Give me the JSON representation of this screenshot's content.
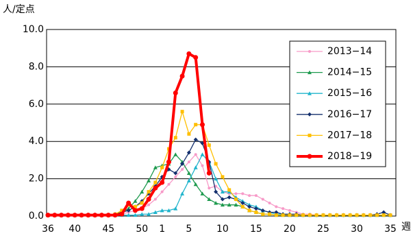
{
  "chart_data": {
    "type": "line",
    "y_label": "人/定点",
    "x_label": "週",
    "categories": [
      "36",
      null,
      null,
      null,
      "40",
      null,
      null,
      null,
      null,
      "45",
      null,
      null,
      null,
      null,
      "50",
      null,
      null,
      "1",
      null,
      null,
      null,
      "5",
      null,
      null,
      null,
      null,
      "10",
      null,
      null,
      null,
      null,
      "15",
      null,
      null,
      null,
      null,
      "20",
      null,
      null,
      null,
      null,
      "25",
      null,
      null,
      null,
      null,
      "30",
      null,
      null,
      null,
      null,
      "35"
    ],
    "ylim": [
      0,
      10
    ],
    "yticks": [
      {
        "value": 0,
        "label": "0.0"
      },
      {
        "value": 2,
        "label": "2.0"
      },
      {
        "value": 4,
        "label": "4.0"
      },
      {
        "value": 6,
        "label": "6.0"
      },
      {
        "value": 8,
        "label": "8.0"
      },
      {
        "value": 10,
        "label": "10.0"
      }
    ],
    "grid": true,
    "legend": "upper right",
    "series": [
      {
        "name": "2013−14",
        "color": "#f79ac8",
        "marker": "circle",
        "values": [
          0.1,
          0.1,
          0.05,
          0.05,
          0.05,
          0.05,
          0.05,
          0.05,
          0.05,
          0.05,
          0.1,
          0.1,
          0.2,
          0.3,
          0.4,
          0.6,
          0.9,
          1.3,
          1.7,
          2.1,
          2.5,
          2.9,
          3.3,
          2.7,
          1.5,
          1.6,
          1.3,
          1.2,
          1.2,
          1.2,
          1.1,
          1.1,
          0.9,
          0.7,
          0.5,
          0.4,
          0.3,
          0.2,
          0.1,
          0.1,
          0.05,
          0.05,
          0.05,
          0.05,
          0.05,
          0.05,
          0.05,
          0.05,
          0.05,
          0.05,
          0.05,
          0.05
        ]
      },
      {
        "name": "2014−15",
        "color": "#1e9a4e",
        "marker": "triangle",
        "values": [
          0.05,
          0.05,
          0.05,
          0.05,
          0.05,
          0.05,
          0.05,
          0.05,
          0.05,
          0.05,
          0.1,
          0.2,
          0.4,
          0.8,
          1.3,
          1.9,
          2.6,
          2.7,
          2.8,
          3.3,
          2.9,
          2.3,
          1.7,
          1.2,
          0.9,
          0.7,
          0.6,
          0.6,
          0.6,
          0.5,
          0.3,
          0.2,
          0.1,
          0.1,
          0.05,
          0.05,
          0.05,
          0.05,
          0.05,
          0.05,
          0.05,
          0.05,
          0.05,
          0.05,
          0.05,
          0.05,
          0.05,
          0.05,
          0.05,
          0.05,
          0.05,
          0.05
        ]
      },
      {
        "name": "2015−16",
        "color": "#1fb4cc",
        "marker": "triangle",
        "values": [
          0.05,
          0.05,
          0.05,
          0.05,
          0.05,
          0.05,
          0.05,
          0.05,
          0.05,
          0.05,
          0.05,
          0.05,
          0.05,
          0.05,
          0.1,
          0.1,
          0.2,
          0.3,
          0.3,
          0.4,
          1.2,
          1.9,
          2.6,
          3.3,
          2.9,
          2.0,
          1.3,
          1.3,
          1.0,
          0.8,
          0.6,
          0.5,
          0.3,
          0.2,
          0.1,
          0.1,
          0.05,
          0.05,
          0.05,
          0.05,
          0.05,
          0.05,
          0.05,
          0.05,
          0.05,
          0.05,
          0.05,
          0.05,
          0.05,
          0.05,
          0.05,
          0.05
        ]
      },
      {
        "name": "2016−17",
        "color": "#14306e",
        "marker": "diamond",
        "values": [
          0.05,
          0.05,
          0.05,
          0.05,
          0.05,
          0.05,
          0.05,
          0.05,
          0.05,
          0.05,
          0.1,
          0.2,
          0.3,
          0.5,
          0.8,
          1.2,
          1.6,
          2.1,
          2.5,
          2.3,
          2.8,
          3.4,
          4.1,
          3.9,
          2.9,
          1.3,
          0.9,
          1.0,
          0.9,
          0.7,
          0.5,
          0.4,
          0.3,
          0.2,
          0.2,
          0.1,
          0.1,
          0.1,
          0.05,
          0.05,
          0.05,
          0.05,
          0.05,
          0.05,
          0.05,
          0.05,
          0.05,
          0.05,
          0.05,
          0.1,
          0.2,
          0.05
        ]
      },
      {
        "name": "2017−18",
        "color": "#ffbf00",
        "marker": "square",
        "values": [
          0.05,
          0.05,
          0.05,
          0.05,
          0.05,
          0.05,
          0.05,
          0.05,
          0.05,
          0.05,
          0.1,
          0.3,
          0.6,
          0.5,
          0.7,
          1.3,
          1.8,
          2.6,
          3.6,
          4.2,
          5.6,
          4.4,
          4.9,
          4.9,
          3.8,
          2.8,
          2.1,
          1.4,
          0.9,
          0.5,
          0.3,
          0.2,
          0.1,
          0.1,
          0.05,
          0.05,
          0.05,
          0.05,
          0.05,
          0.05,
          0.05,
          0.05,
          0.05,
          0.05,
          0.05,
          0.05,
          0.05,
          0.05,
          0.05,
          0.05,
          0.05,
          0.05
        ]
      },
      {
        "name": "2018−19",
        "color": "#ff0000",
        "marker": "bigcircle",
        "values": [
          0.05,
          0.05,
          0.05,
          0.05,
          0.05,
          0.05,
          0.05,
          0.05,
          0.05,
          0.05,
          0.05,
          0.1,
          0.7,
          0.3,
          0.4,
          0.9,
          1.5,
          1.8,
          2.9,
          6.6,
          7.5,
          8.7,
          8.5,
          4.9,
          2.3,
          null,
          null,
          null,
          null,
          null,
          null,
          null,
          null,
          null,
          null,
          null,
          null,
          null,
          null,
          null,
          null,
          null,
          null,
          null,
          null,
          null,
          null,
          null,
          null,
          null,
          null,
          null
        ]
      }
    ]
  }
}
